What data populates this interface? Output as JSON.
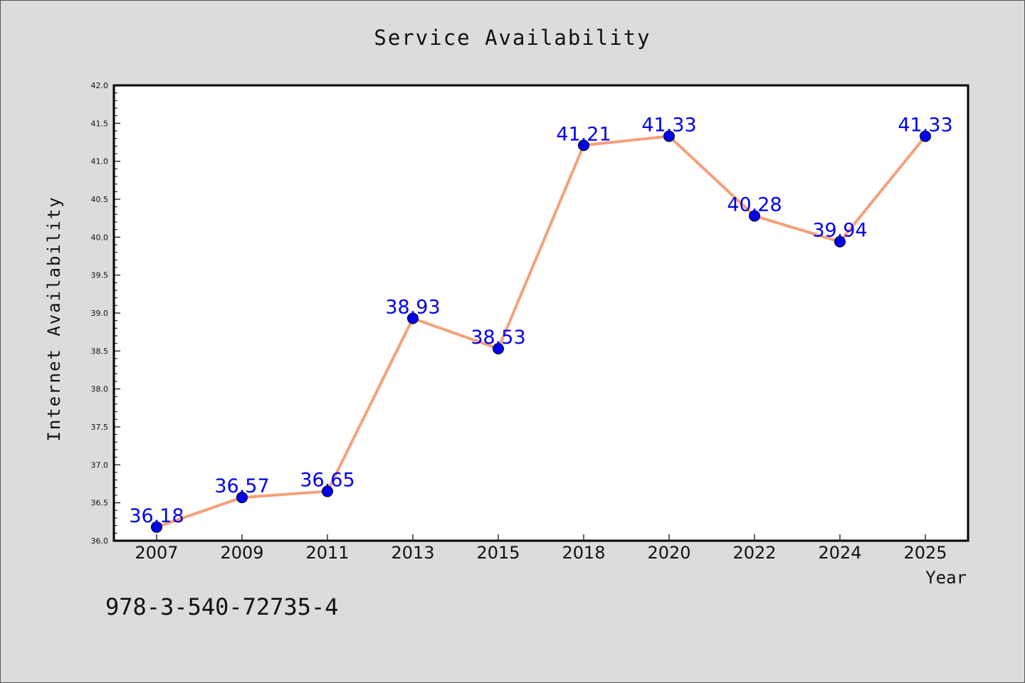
{
  "chart_data": {
    "type": "line",
    "title": "Service Availability",
    "xlabel": "Year",
    "ylabel": "Internet Availability",
    "categories": [
      "2007",
      "2009",
      "2011",
      "2013",
      "2015",
      "2018",
      "2020",
      "2022",
      "2024",
      "2025"
    ],
    "series": [
      {
        "values": [
          36.18,
          36.57,
          36.65,
          38.93,
          38.53,
          41.21,
          41.33,
          40.28,
          39.94,
          41.33
        ],
        "line_color": "#f4a07a",
        "marker_color": "#0000ee",
        "label_color": "#0000ee"
      }
    ],
    "data_labels": [
      "36.18",
      "36.57",
      "36.65",
      "38.93",
      "38.53",
      "41.21",
      "41.33",
      "40.28",
      "39.94",
      "41.33"
    ],
    "ylim": [
      36.0,
      42.0
    ],
    "y_ticks": [
      "36.0",
      "36.5",
      "37.0",
      "37.5",
      "38.0",
      "38.5",
      "39.0",
      "39.5",
      "40.0",
      "40.5",
      "41.0",
      "41.5",
      "42.0"
    ],
    "grid": false,
    "legend": "none"
  },
  "annotation": "978-3-540-72735-4"
}
